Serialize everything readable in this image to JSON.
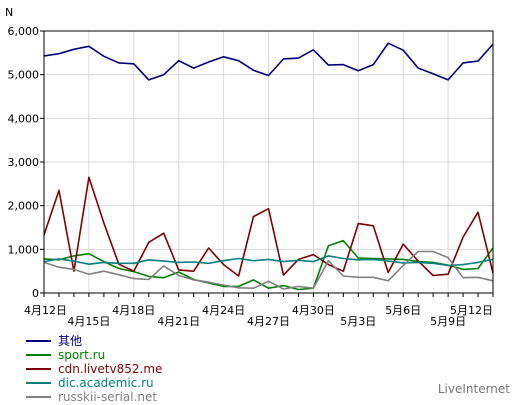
{
  "chart_data": {
    "type": "line",
    "ylabel": "N",
    "ylim": [
      0,
      6000
    ],
    "yticks": [
      0,
      1000,
      2000,
      3000,
      4000,
      5000,
      6000
    ],
    "ytick_labels": [
      "0",
      "1,000",
      "2,000",
      "3,000",
      "4,000",
      "5,000",
      "6,000"
    ],
    "grid": true,
    "legend_position": "bottom-left",
    "x": [
      "4月12日",
      "4月13日",
      "4月14日",
      "4月15日",
      "4月16日",
      "4月17日",
      "4月18日",
      "4月19日",
      "4月20日",
      "4月21日",
      "4月22日",
      "4月23日",
      "4月24日",
      "4月25日",
      "4月26日",
      "4月27日",
      "4月28日",
      "4月29日",
      "4月30日",
      "5月1日",
      "5月2日",
      "5月3日",
      "5月4日",
      "5月5日",
      "5月6日",
      "5月7日",
      "5月8日",
      "5月9日",
      "5月10日",
      "5月11日",
      "5月12日"
    ],
    "xtick_labels": [
      {
        "index": 0,
        "label": "4月12日",
        "row": 1
      },
      {
        "index": 3,
        "label": "4月15日",
        "row": 2
      },
      {
        "index": 6,
        "label": "4月18日",
        "row": 1
      },
      {
        "index": 9,
        "label": "4月21日",
        "row": 2
      },
      {
        "index": 12,
        "label": "4月24日",
        "row": 1
      },
      {
        "index": 15,
        "label": "4月27日",
        "row": 2
      },
      {
        "index": 18,
        "label": "4月30日",
        "row": 1
      },
      {
        "index": 21,
        "label": "5月3日",
        "row": 2
      },
      {
        "index": 24,
        "label": "5月6日",
        "row": 1
      },
      {
        "index": 27,
        "label": "5月9日",
        "row": 2
      },
      {
        "index": 30,
        "label": "5月12日",
        "row": 1
      }
    ],
    "series": [
      {
        "name": "其他",
        "color": "#000080",
        "values": [
          5430,
          5480,
          5580,
          5650,
          5420,
          5270,
          5250,
          4880,
          5000,
          5320,
          5150,
          5290,
          5410,
          5320,
          5100,
          4980,
          5360,
          5380,
          5570,
          5220,
          5230,
          5090,
          5230,
          5720,
          5560,
          5150,
          5020,
          4880,
          5270,
          5310,
          5700
        ]
      },
      {
        "name": "sport.ru",
        "color": "#008000",
        "values": [
          780,
          760,
          850,
          900,
          720,
          560,
          490,
          380,
          350,
          480,
          310,
          230,
          150,
          150,
          300,
          110,
          170,
          80,
          110,
          1080,
          1200,
          800,
          790,
          780,
          770,
          720,
          700,
          640,
          540,
          560,
          1030
        ]
      },
      {
        "name": "cdn.livetv852.me",
        "color": "#800000",
        "values": [
          1330,
          2350,
          500,
          2650,
          1600,
          660,
          500,
          1160,
          1370,
          530,
          500,
          1030,
          650,
          390,
          1750,
          1930,
          410,
          770,
          880,
          650,
          500,
          1590,
          1540,
          470,
          1120,
          730,
          400,
          430,
          1280,
          1850,
          460
        ]
      },
      {
        "name": "dic.academic.ru",
        "color": "#008080",
        "values": [
          720,
          780,
          730,
          660,
          700,
          680,
          680,
          760,
          730,
          700,
          710,
          680,
          740,
          790,
          740,
          770,
          720,
          750,
          720,
          850,
          790,
          760,
          770,
          730,
          690,
          700,
          680,
          630,
          650,
          700,
          770
        ]
      },
      {
        "name": "russkii-serial.net",
        "color": "#808080",
        "values": [
          700,
          590,
          540,
          430,
          500,
          420,
          330,
          310,
          620,
          400,
          300,
          250,
          180,
          120,
          110,
          270,
          90,
          150,
          110,
          740,
          390,
          360,
          360,
          280,
          630,
          950,
          950,
          810,
          350,
          360,
          280
        ]
      }
    ]
  },
  "footer": {
    "credit": "LiveInternet"
  }
}
